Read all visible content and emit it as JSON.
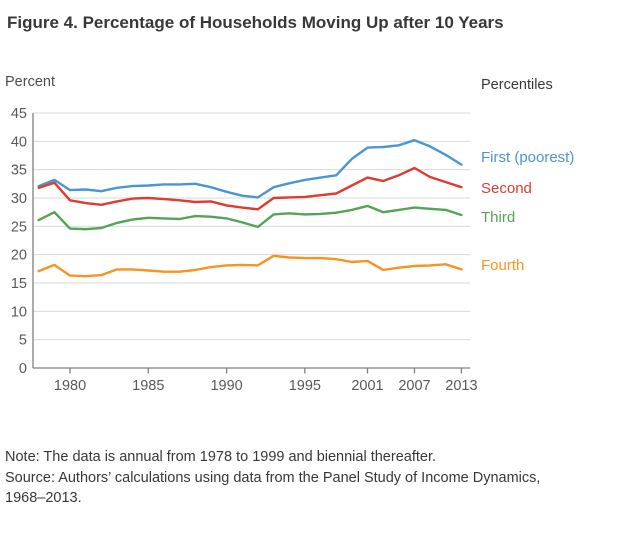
{
  "figure": {
    "title": "Figure 4. Percentage of Households Moving Up after 10 Years",
    "y_axis_unit_label": "Percent",
    "legend_title": "Percentiles",
    "note_line": "Note: The data is annual from 1978 to 1999 and biennial thereafter.",
    "source_line": "Source: Authors’ calculations using data from the Panel Study of Income Dynamics, 1968–2013."
  },
  "chart_data": {
    "type": "line",
    "title": "Figure 4. Percentage of Households Moving Up after 10 Years",
    "ylabel": "Percent",
    "legend_title": "Percentiles",
    "legend_position": "right",
    "grid": "horizontal",
    "ylim": [
      0,
      45
    ],
    "ytick_step": 5,
    "x": [
      1978,
      1979,
      1980,
      1981,
      1982,
      1983,
      1984,
      1985,
      1986,
      1987,
      1988,
      1989,
      1990,
      1991,
      1992,
      1993,
      1994,
      1995,
      1996,
      1997,
      1999,
      2001,
      2003,
      2005,
      2007,
      2009,
      2011,
      2013
    ],
    "x_spacing": "points evenly spaced by index (annual 1978-1997, biennial 1999-2013)",
    "xticks": [
      1980,
      1985,
      1990,
      1995,
      2001,
      2007,
      2013
    ],
    "series": [
      {
        "name": "First (poorest)",
        "color": "#4a96d2",
        "values": [
          32.1,
          33.2,
          31.4,
          31.5,
          31.2,
          31.8,
          32.1,
          32.2,
          32.4,
          32.4,
          32.5,
          31.9,
          31.1,
          30.4,
          30.1,
          31.9,
          32.6,
          33.2,
          33.6,
          34.0,
          36.9,
          38.9,
          39.0,
          39.3,
          40.2,
          39.1,
          37.6,
          35.9
        ]
      },
      {
        "name": "Second",
        "color": "#de3b32",
        "values": [
          31.8,
          32.7,
          29.6,
          29.1,
          28.8,
          29.4,
          29.9,
          30.0,
          29.8,
          29.6,
          29.3,
          29.4,
          28.7,
          28.3,
          28.0,
          30.0,
          30.1,
          30.2,
          30.5,
          30.8,
          32.2,
          33.6,
          33.0,
          34.0,
          35.3,
          33.7,
          32.8,
          31.9
        ]
      },
      {
        "name": "Third",
        "color": "#55a455",
        "values": [
          26.1,
          27.5,
          24.6,
          24.5,
          24.7,
          25.6,
          26.2,
          26.5,
          26.4,
          26.3,
          26.8,
          26.7,
          26.4,
          25.7,
          24.9,
          27.1,
          27.3,
          27.1,
          27.2,
          27.4,
          27.9,
          28.6,
          27.5,
          27.9,
          28.3,
          28.1,
          27.9,
          27.0
        ]
      },
      {
        "name": "Fourth",
        "color": "#f79420",
        "values": [
          17.1,
          18.2,
          16.3,
          16.2,
          16.4,
          17.4,
          17.4,
          17.2,
          17.0,
          17.0,
          17.3,
          17.8,
          18.1,
          18.2,
          18.1,
          19.8,
          19.5,
          19.4,
          19.4,
          19.2,
          18.7,
          18.9,
          17.3,
          17.7,
          18.0,
          18.1,
          18.3,
          17.4
        ]
      }
    ],
    "colors": {
      "gridline": "#d9d9d9",
      "axis": "#808080",
      "tick_label": "#595959",
      "title_text": "#383838",
      "note_text": "#383838"
    }
  }
}
